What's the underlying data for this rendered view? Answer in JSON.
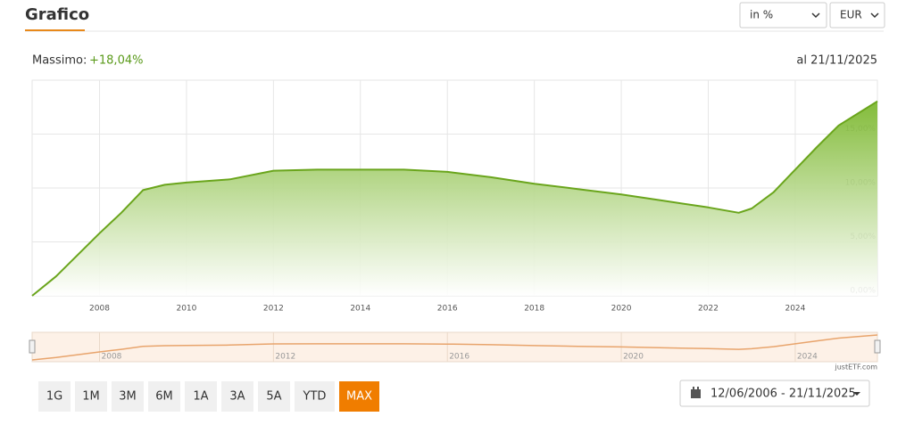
{
  "header": {
    "title": "Grafico",
    "unit_select": "in %",
    "currency_select": "EUR"
  },
  "summary": {
    "label": "Massimo:",
    "value": "+18,04%",
    "date": "al 21/11/2025"
  },
  "chart_data": {
    "type": "area",
    "color": "#6aa51c",
    "grid": true,
    "watermark": "justETF",
    "x": [
      2006.45,
      2007,
      2008,
      2008.5,
      2009,
      2009.5,
      2010,
      2011,
      2012,
      2013,
      2014,
      2015,
      2016,
      2017,
      2018,
      2019,
      2020,
      2021,
      2022,
      2022.7,
      2023,
      2023.5,
      2024,
      2024.5,
      2025,
      2025.89
    ],
    "values": [
      0,
      1.8,
      5.8,
      7.7,
      9.8,
      10.3,
      10.5,
      10.8,
      11.6,
      11.7,
      11.7,
      11.7,
      11.5,
      11.0,
      10.4,
      9.9,
      9.4,
      8.8,
      8.2,
      7.7,
      8.1,
      9.6,
      11.7,
      13.8,
      15.8,
      18.04
    ],
    "xlim": [
      2006.45,
      2025.89
    ],
    "xticks": [
      2008,
      2010,
      2012,
      2014,
      2016,
      2018,
      2020,
      2022,
      2024
    ],
    "ylim": [
      0,
      20
    ],
    "yticks": [
      {
        "value": 0,
        "label": "0,00%"
      },
      {
        "value": 5,
        "label": "5,00%"
      },
      {
        "value": 10,
        "label": "10,00%"
      },
      {
        "value": 15,
        "label": "15,00%"
      }
    ],
    "navigator_color": "#e8a46c",
    "navigator_xticks": [
      2008,
      2012,
      2016,
      2020,
      2024
    ],
    "credit": "justETF.com"
  },
  "ranges": [
    {
      "label": "1G"
    },
    {
      "label": "1M"
    },
    {
      "label": "3M"
    },
    {
      "label": "6M"
    },
    {
      "label": "1A"
    },
    {
      "label": "3A"
    },
    {
      "label": "5A"
    },
    {
      "label": "YTD"
    },
    {
      "label": "MAX",
      "active": true
    }
  ],
  "date_range": "12/06/2006 - 21/11/2025"
}
